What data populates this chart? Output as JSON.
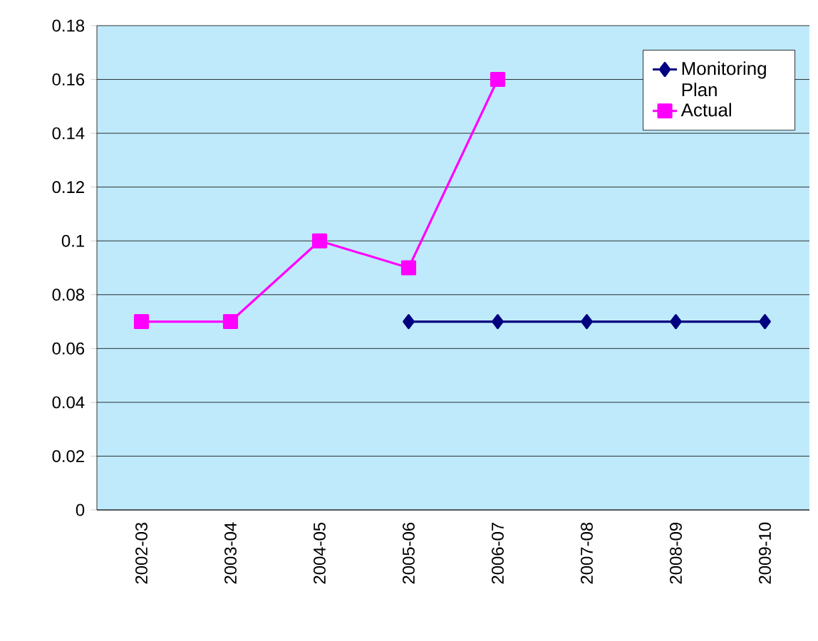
{
  "chart_data": {
    "type": "line",
    "categories": [
      "2002-03",
      "2003-04",
      "2004-05",
      "2005-06",
      "2006-07",
      "2007-08",
      "2008-09",
      "2009-10"
    ],
    "series": [
      {
        "name": "Monitoring Plan",
        "color": "#000080",
        "marker": "diamond",
        "values": [
          null,
          null,
          null,
          0.07,
          0.07,
          0.07,
          0.07,
          0.07
        ]
      },
      {
        "name": "Actual",
        "color": "#ff00ff",
        "marker": "square",
        "values": [
          0.07,
          0.07,
          0.1,
          0.09,
          0.16,
          null,
          null,
          null
        ]
      }
    ],
    "ylim": [
      0,
      0.18
    ],
    "yticks": [
      0,
      0.02,
      0.04,
      0.06,
      0.08,
      0.1,
      0.12,
      0.14,
      0.16,
      0.18
    ],
    "grid": "y",
    "legend": "top right"
  }
}
